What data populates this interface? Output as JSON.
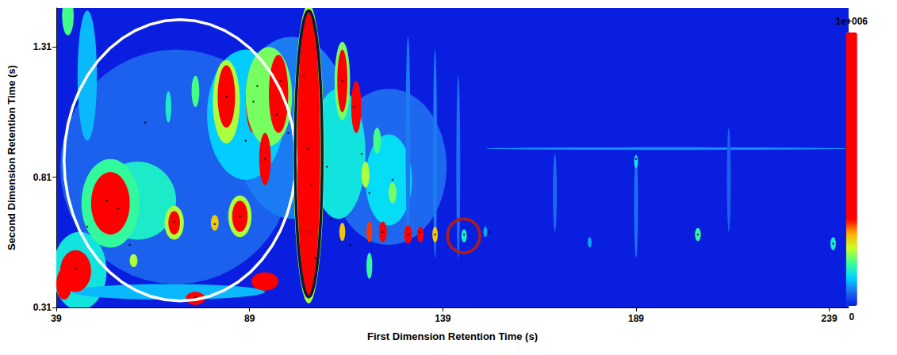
{
  "chart_data": {
    "type": "heatmap",
    "xlabel": "First Dimension Retention Time (s)",
    "ylabel": "Second Dimension Retention Time (s)",
    "xlim": [
      39,
      244
    ],
    "xticks": [
      39,
      89,
      139,
      189,
      239
    ],
    "ylim": [
      0.31,
      1.46
    ],
    "yticks": [
      0.31,
      0.81,
      1.31
    ],
    "colorbar": {
      "range": [
        0,
        1000000
      ],
      "ticks": [
        0,
        {
          "value": 1000000,
          "label": "1e+006"
        }
      ]
    },
    "peaks": {
      "x": [
        70,
        100,
        125,
        88,
        60,
        45,
        112,
        125,
        47,
        42,
        197,
        130,
        137,
        143,
        189,
        168,
        213,
        68,
        44,
        41,
        53,
        53,
        104.3,
        104.3,
        83,
        83,
        90,
        94,
        96.5,
        113,
        113,
        116.6,
        75,
        68,
        69.5,
        69.5,
        80,
        86.5,
        86.5,
        93,
        93,
        75,
        59,
        113,
        120,
        123.5,
        130,
        133.2,
        137,
        144.5,
        150,
        205,
        240,
        189,
        177,
        119,
        126,
        122,
        120
      ],
      "y": [
        0.85,
        1.0,
        0.85,
        1.05,
        0.72,
        0.45,
        0.9,
        0.8,
        1.2,
        1.43,
        0.92,
        0.95,
        0.9,
        0.85,
        0.7,
        0.75,
        0.8,
        0.37,
        0.45,
        0.4,
        0.71,
        0.71,
        0.9,
        0.9,
        1.1,
        1.12,
        1.11,
        1.12,
        1.13,
        1.18,
        1.18,
        1.08,
        1.14,
        1.08,
        0.635,
        0.635,
        0.635,
        0.66,
        0.66,
        0.88,
        0.41,
        0.345,
        0.49,
        0.6,
        0.6,
        0.6,
        0.59,
        0.59,
        0.59,
        0.585,
        0.6,
        0.59,
        0.555,
        0.87,
        0.56,
        0.82,
        0.75,
        0.95,
        0.47
      ],
      "x_width": [
        60,
        30,
        30,
        20,
        20,
        14,
        14,
        12,
        5,
        3,
        94,
        1.2,
        1,
        1,
        1,
        1,
        1,
        50,
        8,
        4,
        15,
        10,
        8,
        6,
        7,
        4.5,
        4,
        12,
        5,
        4,
        2.6,
        2.6,
        2,
        1.5,
        5,
        3,
        2,
        6,
        4,
        3,
        7,
        5,
        2,
        1.5,
        1.5,
        2,
        2,
        1.6,
        1.4,
        1.4,
        1,
        1.5,
        1.4,
        1,
        1,
        2,
        2,
        2,
        1.5
      ],
      "y_width": [
        0.9,
        0.7,
        0.6,
        0.5,
        0.3,
        0.3,
        0.5,
        0.35,
        0.5,
        0.15,
        0.01,
        0.8,
        0.8,
        0.7,
        0.4,
        0.3,
        0.4,
        0.06,
        0.16,
        0.12,
        0.34,
        0.24,
        1.15,
        1.1,
        0.32,
        0.24,
        0.26,
        0.38,
        0.3,
        0.3,
        0.24,
        0.2,
        0.12,
        0.12,
        0.13,
        0.09,
        0.06,
        0.16,
        0.12,
        0.2,
        0.07,
        0.05,
        0.05,
        0.07,
        0.08,
        0.08,
        0.07,
        0.06,
        0.06,
        0.05,
        0.04,
        0.05,
        0.05,
        0.05,
        0.04,
        0.1,
        0.08,
        0.1,
        0.1
      ],
      "intensity": [
        45000,
        60000,
        50000,
        100000,
        130000,
        120000,
        120000,
        110000,
        90000,
        160000,
        70000,
        60000,
        60000,
        55000,
        55000,
        50000,
        45000,
        90000,
        600000,
        800000,
        150000,
        700000,
        200000,
        1000000,
        200000,
        500000,
        550000,
        180000,
        700000,
        180000,
        600000,
        450000,
        160000,
        130000,
        200000,
        500000,
        250000,
        200000,
        500000,
        400000,
        600000,
        400000,
        200000,
        250000,
        300000,
        500000,
        450000,
        400000,
        250000,
        130000,
        80000,
        150000,
        130000,
        120000,
        80000,
        200000,
        180000,
        160000,
        150000
      ]
    },
    "peak_markers": {
      "x": [
        44,
        47,
        52,
        55,
        58,
        62,
        69.5,
        75,
        80,
        83,
        86.5,
        88,
        90,
        91,
        93,
        96,
        97,
        99,
        103,
        104,
        105,
        104.5,
        106,
        109,
        113,
        116,
        118,
        120,
        123.5,
        126,
        130,
        133,
        137,
        144.5,
        151,
        205,
        240,
        189,
        115,
        110
      ],
      "y": [
        0.46,
        0.62,
        0.72,
        0.69,
        0.55,
        1.02,
        0.64,
        0.35,
        0.63,
        1.12,
        0.66,
        0.95,
        1.1,
        1.16,
        0.88,
        1.05,
        1.18,
        0.98,
        1.2,
        0.92,
        0.78,
        0.6,
        0.5,
        0.85,
        1.18,
        1.08,
        0.9,
        0.75,
        0.6,
        0.8,
        0.59,
        0.6,
        0.59,
        0.59,
        0.6,
        0.59,
        0.555,
        0.88,
        0.55,
        0.65
      ]
    },
    "highlights": [
      {
        "x": 71,
        "y": 0.875,
        "x_radius": 30,
        "y_radius": 0.54,
        "color": "#ffffff"
      },
      {
        "x": 104.3,
        "y": 0.9,
        "x_radius": 3.5,
        "y_radius": 0.55,
        "color": "#0a1a3a"
      },
      {
        "x": 144.4,
        "y": 0.585,
        "x_radius": 4.2,
        "y_radius": 0.065,
        "color": "#b01c1c"
      }
    ]
  }
}
